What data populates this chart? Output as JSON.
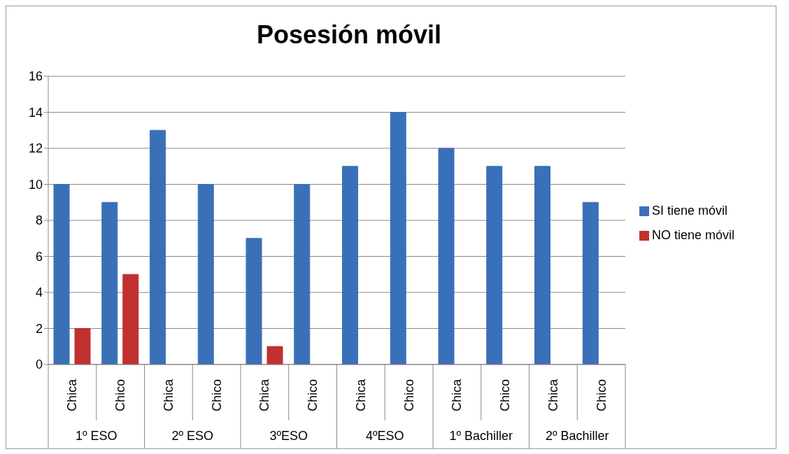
{
  "chart_data": {
    "type": "bar",
    "title": "Posesión móvil",
    "categories": [
      "Chica",
      "Chico",
      "Chica",
      "Chico",
      "Chica",
      "Chico",
      "Chica",
      "Chico",
      "Chica",
      "Chico",
      "Chica",
      "Chico"
    ],
    "series": [
      {
        "name": "SI tiene móvil",
        "color": "#3a70b8",
        "values": [
          10,
          9,
          13,
          10,
          7,
          10,
          11,
          14,
          12,
          11,
          11,
          9
        ]
      },
      {
        "name": "NO tiene móvil",
        "color": "#c0302e",
        "values": [
          2,
          5,
          0,
          0,
          1,
          0,
          0,
          0,
          0,
          0,
          0,
          0
        ]
      }
    ],
    "annotations": [
      "1º ESO",
      "2º ESO",
      "3ºESO",
      "4ºESO",
      "1º Bachiller",
      "2º Bachiller"
    ],
    "ylim": [
      0,
      16
    ],
    "yticks": [
      0,
      2,
      4,
      6,
      8,
      10,
      12,
      14,
      16
    ],
    "grid": "y",
    "legend": "right"
  }
}
